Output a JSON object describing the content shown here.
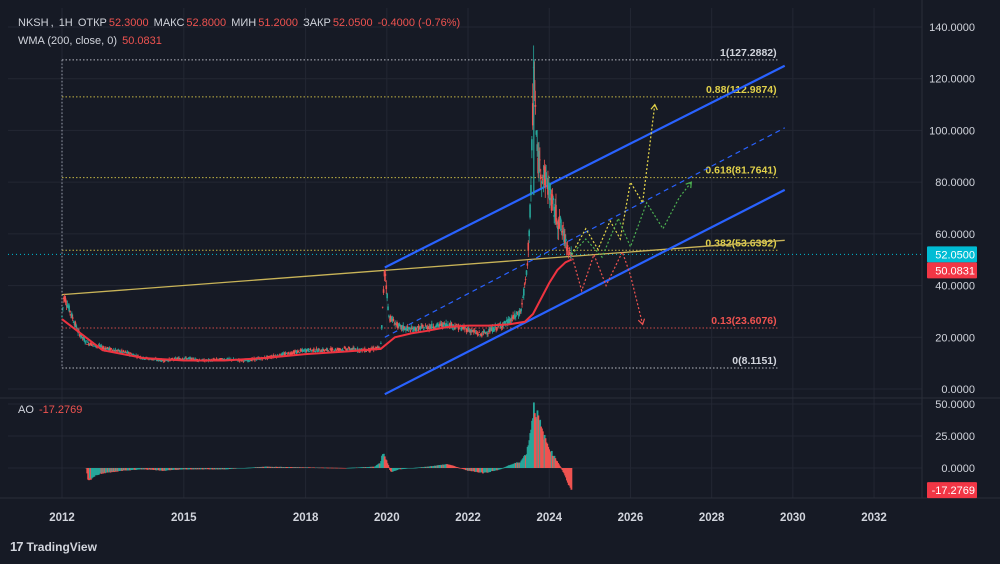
{
  "header": {
    "symbol": "NKSH",
    "interval": "1Н",
    "open_label": "ОТКР",
    "open_value": "52.3000",
    "high_label": "МАКС",
    "high_value": "52.8000",
    "low_label": "МИН",
    "low_value": "51.2000",
    "close_label": "ЗАКР",
    "close_value": "52.0500",
    "change": "-0.4000 (-0.76%)"
  },
  "wma": {
    "label": "WMA (200, close, 0)",
    "value": "50.0831"
  },
  "ao": {
    "label": "AO",
    "value": "-17.2769"
  },
  "brand": {
    "logo": "17",
    "name": "TradingView"
  },
  "colors": {
    "background": "#161a25",
    "up": "#26a69a",
    "down": "#ef5350",
    "wma": "#ef3340",
    "channel": "#2962ff",
    "trendline": "#c9b458",
    "fib_yellow": "#e0d04a",
    "fib_red": "#ef5350",
    "fib_white": "#d1d4dc",
    "current_price_bg": "#00bcd4"
  },
  "chart_data": [
    {
      "type": "candlestick",
      "title": "NKSH",
      "y_axis": {
        "ticks": [
          "140.0000",
          "120.0000",
          "100.0000",
          "80.0000",
          "60.0000",
          "40.0000",
          "20.0000",
          "0.0000"
        ],
        "ylim": [
          -2,
          145
        ]
      },
      "x_axis": {
        "ticks": [
          "2012",
          "2015",
          "2018",
          "2020",
          "2022",
          "2024",
          "2026",
          "2028",
          "2030",
          "2032"
        ],
        "xlim": [
          2012.0,
          2033.3
        ]
      },
      "price_path": [
        [
          2012.0,
          28
        ],
        [
          2012.05,
          36
        ],
        [
          2012.2,
          30
        ],
        [
          2012.4,
          22
        ],
        [
          2012.6,
          18
        ],
        [
          2012.8,
          17
        ],
        [
          2013.0,
          16
        ],
        [
          2013.3,
          15
        ],
        [
          2013.6,
          14
        ],
        [
          2014.0,
          12
        ],
        [
          2014.5,
          11
        ],
        [
          2015.0,
          12
        ],
        [
          2015.5,
          11
        ],
        [
          2016.0,
          11.5
        ],
        [
          2016.5,
          11
        ],
        [
          2017.0,
          12
        ],
        [
          2017.5,
          13.5
        ],
        [
          2018.0,
          15
        ],
        [
          2018.5,
          15
        ],
        [
          2019.0,
          15.5
        ],
        [
          2019.5,
          15
        ],
        [
          2019.85,
          16
        ],
        [
          2019.95,
          47
        ],
        [
          2020.05,
          28
        ],
        [
          2020.3,
          24
        ],
        [
          2020.6,
          23
        ],
        [
          2021.0,
          24
        ],
        [
          2021.5,
          25
        ],
        [
          2022.0,
          23
        ],
        [
          2022.3,
          21
        ],
        [
          2022.6,
          23
        ],
        [
          2023.0,
          26
        ],
        [
          2023.3,
          30
        ],
        [
          2023.45,
          45
        ],
        [
          2023.55,
          75
        ],
        [
          2023.62,
          127
        ],
        [
          2023.7,
          90
        ],
        [
          2023.8,
          85
        ],
        [
          2023.95,
          80
        ],
        [
          2024.1,
          70
        ],
        [
          2024.3,
          62
        ],
        [
          2024.45,
          55
        ],
        [
          2024.55,
          52.05
        ]
      ],
      "wma_path": [
        [
          2012.0,
          27
        ],
        [
          2013.0,
          15
        ],
        [
          2014.0,
          12
        ],
        [
          2015.0,
          11
        ],
        [
          2016.0,
          11
        ],
        [
          2017.0,
          12
        ],
        [
          2018.0,
          13.5
        ],
        [
          2019.0,
          14.5
        ],
        [
          2019.85,
          15.5
        ],
        [
          2020.2,
          20
        ],
        [
          2020.6,
          21.5
        ],
        [
          2021.0,
          22.5
        ],
        [
          2021.5,
          24
        ],
        [
          2022.0,
          24.5
        ],
        [
          2022.5,
          24.5
        ],
        [
          2023.0,
          25
        ],
        [
          2023.4,
          26
        ],
        [
          2023.6,
          29
        ],
        [
          2023.8,
          35
        ],
        [
          2024.0,
          41
        ],
        [
          2024.2,
          46
        ],
        [
          2024.4,
          49
        ],
        [
          2024.55,
          50.0831
        ]
      ],
      "fibonacci": [
        {
          "level": "1",
          "value": 127.2882,
          "label": "1(127.2882)",
          "color": "white"
        },
        {
          "level": "0.88",
          "value": 112.9874,
          "label": "0.88(112.9874)",
          "color": "yellow"
        },
        {
          "level": "0.618",
          "value": 81.7641,
          "label": "0.618(81.7641)",
          "color": "yellow"
        },
        {
          "level": "0.382",
          "value": 53.6392,
          "label": "0.382(53.6392)",
          "color": "yellow"
        },
        {
          "level": "0.13",
          "value": 23.6076,
          "label": "0.13(23.6076)",
          "color": "red"
        },
        {
          "level": "0",
          "value": 8.1151,
          "label": "0(8.1151)",
          "color": "white"
        }
      ],
      "channel": {
        "upper": [
          [
            2019.95,
            47
          ],
          [
            2029.8,
            125
          ]
        ],
        "middle": [
          [
            2019.95,
            20
          ],
          [
            2029.8,
            101
          ]
        ],
        "lower": [
          [
            2019.95,
            -2
          ],
          [
            2029.8,
            77
          ]
        ]
      },
      "trendline": [
        [
          2012.0,
          36.5
        ],
        [
          2029.8,
          57.5
        ]
      ],
      "scenarios": [
        {
          "name": "bullish",
          "color": "yellow",
          "points": [
            [
              2024.55,
              52
            ],
            [
              2024.9,
              62
            ],
            [
              2025.2,
              54
            ],
            [
              2025.5,
              65
            ],
            [
              2025.75,
              58
            ],
            [
              2026.0,
              80
            ],
            [
              2026.3,
              72
            ],
            [
              2026.6,
              110
            ]
          ]
        },
        {
          "name": "neutral",
          "color": "green",
          "points": [
            [
              2024.55,
              52
            ],
            [
              2024.9,
              58
            ],
            [
              2025.3,
              51
            ],
            [
              2025.7,
              66
            ],
            [
              2026.0,
              55
            ],
            [
              2026.4,
              72
            ],
            [
              2026.8,
              62
            ],
            [
              2027.2,
              74
            ],
            [
              2027.5,
              80
            ]
          ]
        },
        {
          "name": "bearish",
          "color": "red",
          "points": [
            [
              2024.55,
              52
            ],
            [
              2024.8,
              38
            ],
            [
              2025.1,
              52
            ],
            [
              2025.4,
              40
            ],
            [
              2025.8,
              53
            ],
            [
              2026.0,
              44
            ],
            [
              2026.3,
              25
            ]
          ]
        }
      ],
      "price_labels": {
        "current": "52.0500",
        "wma": "50.0831"
      }
    },
    {
      "type": "bar",
      "title": "AO",
      "y_axis": {
        "ticks": [
          "50.0000",
          "25.0000",
          "0.0000"
        ],
        "ylim": [
          -22,
          54
        ]
      },
      "ao_path": [
        [
          2012.0,
          0
        ],
        [
          2012.6,
          0
        ],
        [
          2012.65,
          -10
        ],
        [
          2012.8,
          -6
        ],
        [
          2013.0,
          -4
        ],
        [
          2013.5,
          -2
        ],
        [
          2014.0,
          -1
        ],
        [
          2014.5,
          -2
        ],
        [
          2015.0,
          -1
        ],
        [
          2016.0,
          -1
        ],
        [
          2017.0,
          1
        ],
        [
          2018.0,
          0.5
        ],
        [
          2019.0,
          0
        ],
        [
          2019.7,
          1
        ],
        [
          2019.85,
          4
        ],
        [
          2019.9,
          12
        ],
        [
          2020.0,
          5
        ],
        [
          2020.1,
          -3
        ],
        [
          2020.3,
          -1
        ],
        [
          2021.0,
          1
        ],
        [
          2021.5,
          3
        ],
        [
          2022.0,
          -2
        ],
        [
          2022.4,
          -4
        ],
        [
          2022.8,
          -1
        ],
        [
          2023.0,
          2
        ],
        [
          2023.3,
          5
        ],
        [
          2023.45,
          12
        ],
        [
          2023.55,
          30
        ],
        [
          2023.62,
          48
        ],
        [
          2023.7,
          42
        ],
        [
          2023.85,
          26
        ],
        [
          2024.0,
          15
        ],
        [
          2024.2,
          5
        ],
        [
          2024.35,
          -3
        ],
        [
          2024.45,
          -10
        ],
        [
          2024.55,
          -17.2769
        ]
      ],
      "current_value": "-17.2769"
    }
  ]
}
